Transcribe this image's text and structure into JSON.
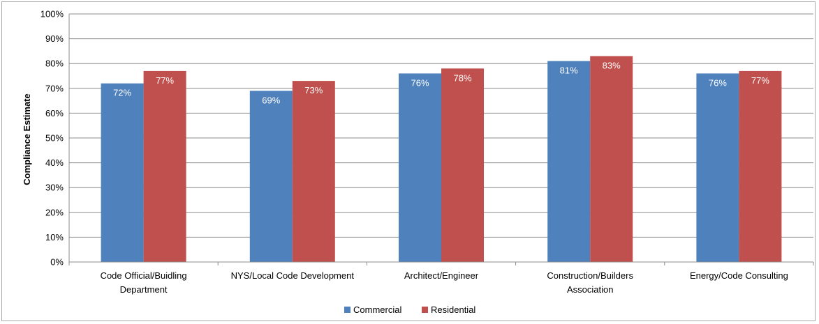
{
  "chart_data": {
    "type": "bar",
    "categories": [
      [
        "Code Official/Buidling",
        "Department"
      ],
      [
        "NYS/Local Code Development"
      ],
      [
        "Architect/Engineer"
      ],
      [
        "Construction/Builders",
        "Association"
      ],
      [
        "Energy/Code Consulting"
      ]
    ],
    "series": [
      {
        "name": "Commercial",
        "color": "#4f81bd",
        "values": [
          72,
          69,
          76,
          81,
          76
        ],
        "labels": [
          "72%",
          "69%",
          "76%",
          "81%",
          "76%"
        ]
      },
      {
        "name": "Residential",
        "color": "#c0504d",
        "values": [
          77,
          73,
          78,
          83,
          77
        ],
        "labels": [
          "77%",
          "73%",
          "78%",
          "83%",
          "77%"
        ]
      }
    ],
    "title": "",
    "xlabel": "",
    "ylabel": "Compliance Estimate",
    "ylim": [
      0,
      100
    ],
    "yticks": [
      "0%",
      "10%",
      "20%",
      "30%",
      "40%",
      "50%",
      "60%",
      "70%",
      "80%",
      "90%",
      "100%"
    ],
    "grid": true,
    "legend": "bottom"
  }
}
